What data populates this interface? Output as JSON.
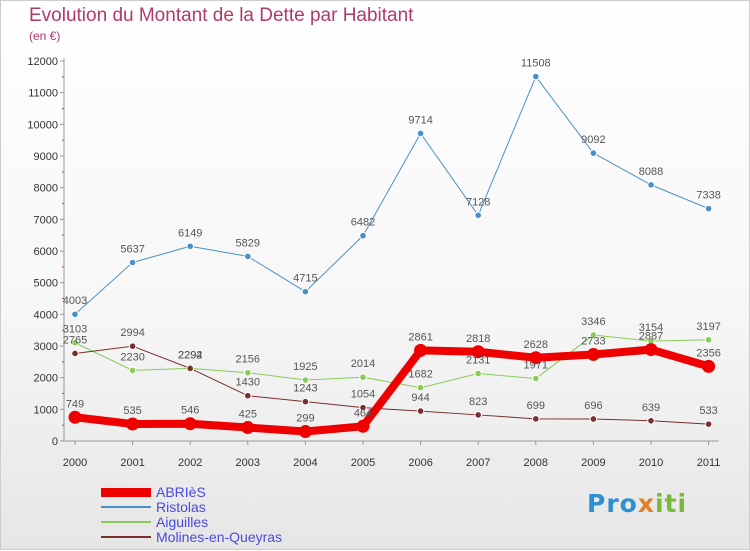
{
  "header": {
    "title": "Evolution du Montant de la Dette par Habitant",
    "subtitle": "(en €)"
  },
  "logo": {
    "text": "Proxiti",
    "colors": [
      "#2f8fd0",
      "#e0822a",
      "#7ab83a"
    ]
  },
  "chart_data": {
    "type": "line",
    "title": "Evolution du Montant de la Dette par Habitant",
    "subtitle": "(en €)",
    "xlabel": "",
    "ylabel": "",
    "x": [
      "2000",
      "2001",
      "2002",
      "2003",
      "2004",
      "2005",
      "2006",
      "2007",
      "2008",
      "2009",
      "2010",
      "2011"
    ],
    "ylim": [
      0,
      12000
    ],
    "yticks": [
      0,
      1000,
      2000,
      3000,
      4000,
      5000,
      6000,
      7000,
      8000,
      9000,
      10000,
      11000,
      12000
    ],
    "grid": false,
    "legend": "bottom-left",
    "series": [
      {
        "name": "ABRIèS",
        "color": "#ee0000",
        "emphasis": true,
        "values": [
          749,
          535,
          546,
          425,
          299,
          464,
          2861,
          2818,
          2628,
          2733,
          2887,
          2356
        ],
        "labels": [
          "749",
          "535",
          "546",
          "425",
          "299",
          "464",
          "2861",
          "2818",
          "2628",
          "2733",
          "2887",
          "2356"
        ]
      },
      {
        "name": "Ristolas",
        "color": "#4a90c8",
        "values": [
          4003,
          5637,
          6149,
          5829,
          4715,
          6482,
          9714,
          7128,
          11508,
          9092,
          8088,
          7338
        ],
        "labels": [
          "4003",
          "5637",
          "6149",
          "5829",
          "4715",
          "6482",
          "9714",
          "7128",
          "11508",
          "9092",
          "8088",
          "7338"
        ]
      },
      {
        "name": "Aiguilles",
        "color": "#88cc55",
        "values": [
          3103,
          2230,
          2292,
          2156,
          1925,
          2014,
          1682,
          2131,
          1971,
          3346,
          3154,
          3197
        ],
        "labels": [
          "3103",
          "2230",
          "2292",
          "2156",
          "1925",
          "2014",
          "1682",
          "2131",
          "1971",
          "3346",
          "3154",
          "3197"
        ]
      },
      {
        "name": "Molines-en-Queyras",
        "color": "#7a2e2e",
        "values": [
          2765,
          2994,
          2294,
          1430,
          1243,
          1054,
          944,
          823,
          699,
          696,
          639,
          533
        ],
        "labels": [
          "2765",
          "2994",
          "2294",
          "1430",
          "1243",
          "1054",
          "944",
          "823",
          "699",
          "696",
          "639",
          "533"
        ]
      }
    ]
  }
}
